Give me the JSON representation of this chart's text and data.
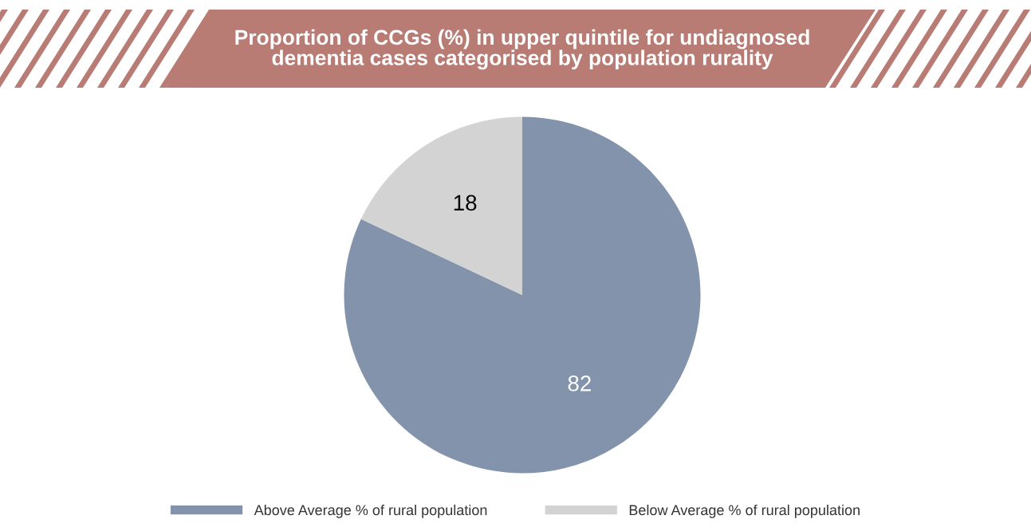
{
  "chart_data": {
    "type": "pie",
    "title": "Proportion of CCGs (%) in upper quintile for undiagnosed\ndementia cases categorised by population rurality",
    "categories": [
      "Above Average % of rural population",
      "Below Average % of rural population"
    ],
    "values": [
      82,
      18
    ],
    "colors": [
      "#8393ab",
      "#d3d3d3"
    ],
    "data_labels": true,
    "legend": "bottom"
  }
}
